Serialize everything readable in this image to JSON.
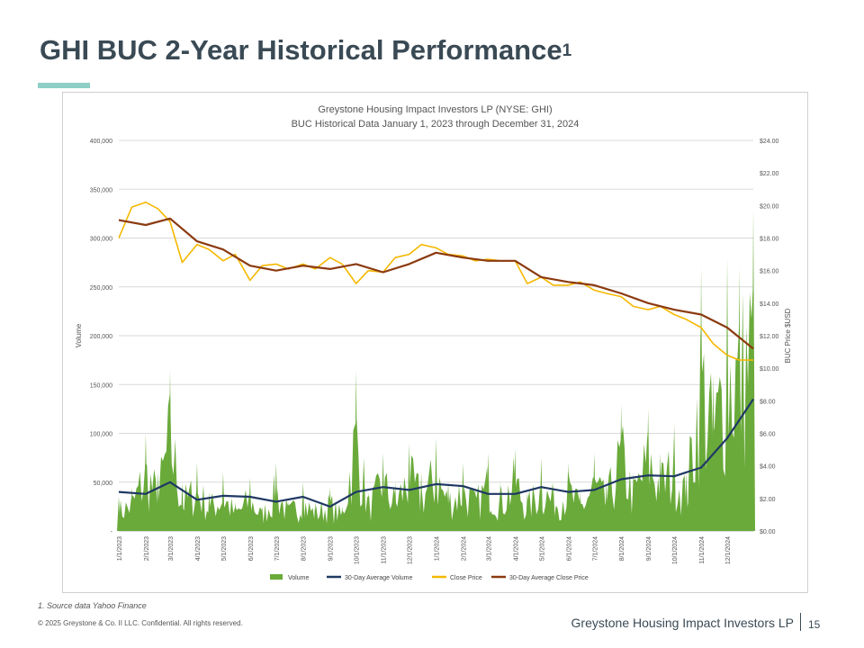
{
  "slide": {
    "title": "GHI BUC 2-Year Historical Performance",
    "title_sup": "1",
    "footnote": "1.  Source data Yahoo Finance",
    "copyright": "© 2025 Greystone & Co. II LLC. Confidential. All rights reserved.",
    "footer_brand": "Greystone Housing Impact Investors LP",
    "page_number": "15",
    "accent_color": "#8ecfc6"
  },
  "chart_data": {
    "type": "area",
    "title": "Greystone Housing Impact Investors LP (NYSE: GHI)",
    "subtitle": "BUC Historical Data January 1, 2023 through December  31, 2024",
    "ylabel": "Volume",
    "y2label": "BUC Price $USD",
    "ylim": [
      0,
      400000
    ],
    "y2lim": [
      0,
      24
    ],
    "y_ticks": [
      "-",
      "50,000",
      "100,000",
      "150,000",
      "200,000",
      "250,000",
      "300,000",
      "350,000",
      "400,000"
    ],
    "y2_ticks": [
      "$0.00",
      "$2.00",
      "$4.00",
      "$6.00",
      "$8.00",
      "$10.00",
      "$12.00",
      "$14.00",
      "$16.00",
      "$18.00",
      "$20.00",
      "$22.00",
      "$24.00"
    ],
    "x_ticks": [
      "1/1/2023",
      "2/1/2023",
      "3/1/2023",
      "4/1/2023",
      "5/1/2023",
      "6/1/2023",
      "7/1/2023",
      "8/1/2023",
      "9/1/2023",
      "10/1/2023",
      "11/1/2023",
      "12/1/2023",
      "1/1/2024",
      "2/1/2024",
      "3/1/2024",
      "4/1/2024",
      "5/1/2024",
      "6/1/2024",
      "7/1/2024",
      "8/1/2024",
      "9/1/2024",
      "10/1/2024",
      "11/1/2024",
      "12/1/2024"
    ],
    "grid": true,
    "legend_position": "bottom",
    "legend": [
      "Volume",
      "30-Day Average Volume",
      "Close Price",
      "30-Day Average Close Price"
    ],
    "colors": {
      "volume": "#6aaa3a",
      "avg_volume": "#1f3864",
      "close": "#f5b800",
      "avg_close": "#8b3a0f"
    },
    "series": [
      {
        "name": "Close Price",
        "axis": "right",
        "dates": [
          "1/1/2023",
          "1/16/2023",
          "2/1/2023",
          "2/15/2023",
          "3/1/2023",
          "3/15/2023",
          "4/1/2023",
          "4/15/2023",
          "5/1/2023",
          "5/15/2023",
          "6/1/2023",
          "6/15/2023",
          "7/1/2023",
          "7/15/2023",
          "8/1/2023",
          "8/15/2023",
          "9/1/2023",
          "9/15/2023",
          "10/1/2023",
          "10/15/2023",
          "11/1/2023",
          "11/15/2023",
          "12/1/2023",
          "12/15/2023",
          "1/1/2024",
          "1/15/2024",
          "2/1/2024",
          "2/15/2024",
          "3/1/2024",
          "3/15/2024",
          "4/1/2024",
          "4/15/2024",
          "5/1/2024",
          "5/15/2024",
          "6/1/2024",
          "6/15/2024",
          "7/1/2024",
          "7/15/2024",
          "8/1/2024",
          "8/15/2024",
          "9/1/2024",
          "9/15/2024",
          "10/1/2024",
          "10/15/2024",
          "11/1/2024",
          "11/15/2024",
          "12/1/2024",
          "12/15/2024",
          "12/31/2024"
        ],
        "values": [
          18.0,
          19.9,
          20.2,
          19.8,
          19.0,
          16.5,
          17.6,
          17.3,
          16.6,
          17.0,
          15.4,
          16.3,
          16.4,
          16.1,
          16.4,
          16.1,
          16.8,
          16.4,
          15.2,
          16.0,
          15.9,
          16.8,
          17.0,
          17.6,
          17.4,
          17.0,
          16.9,
          16.6,
          16.7,
          16.6,
          16.6,
          15.2,
          15.6,
          15.1,
          15.1,
          15.3,
          14.8,
          14.6,
          14.4,
          13.8,
          13.6,
          13.8,
          13.3,
          13.0,
          12.5,
          11.5,
          10.8,
          10.5,
          10.5
        ]
      },
      {
        "name": "30-Day Average Close Price",
        "axis": "right",
        "dates": [
          "1/1/2023",
          "2/1/2023",
          "3/1/2023",
          "4/1/2023",
          "5/1/2023",
          "6/1/2023",
          "7/1/2023",
          "8/1/2023",
          "9/1/2023",
          "10/1/2023",
          "11/1/2023",
          "12/1/2023",
          "1/1/2024",
          "2/1/2024",
          "3/1/2024",
          "4/1/2024",
          "5/1/2024",
          "6/1/2024",
          "7/1/2024",
          "8/1/2024",
          "9/1/2024",
          "10/1/2024",
          "11/1/2024",
          "12/1/2024",
          "12/31/2024"
        ],
        "values": [
          19.1,
          18.8,
          19.2,
          17.8,
          17.3,
          16.3,
          16.0,
          16.3,
          16.1,
          16.4,
          15.9,
          16.4,
          17.1,
          16.8,
          16.6,
          16.6,
          15.6,
          15.3,
          15.1,
          14.6,
          14.0,
          13.6,
          13.3,
          12.5,
          11.2
        ]
      },
      {
        "name": "Volume",
        "axis": "left",
        "dates": [
          "1/1/2023",
          "1/16/2023",
          "2/1/2023",
          "2/15/2023",
          "3/1/2023",
          "3/15/2023",
          "4/1/2023",
          "4/15/2023",
          "5/1/2023",
          "5/15/2023",
          "6/1/2023",
          "6/15/2023",
          "7/1/2023",
          "7/15/2023",
          "8/1/2023",
          "8/15/2023",
          "9/1/2023",
          "9/15/2023",
          "10/1/2023",
          "10/15/2023",
          "11/1/2023",
          "11/15/2023",
          "12/1/2023",
          "12/15/2023",
          "1/1/2024",
          "1/15/2024",
          "2/1/2024",
          "2/15/2024",
          "3/1/2024",
          "3/15/2024",
          "4/1/2024",
          "4/15/2024",
          "5/1/2024",
          "5/15/2024",
          "6/1/2024",
          "6/15/2024",
          "7/1/2024",
          "7/15/2024",
          "8/1/2024",
          "8/15/2024",
          "9/1/2024",
          "9/15/2024",
          "10/1/2024",
          "10/15/2024",
          "11/1/2024",
          "11/15/2024",
          "12/1/2024",
          "12/15/2024",
          "12/31/2024"
        ],
        "values": [
          35000,
          45000,
          100000,
          60000,
          165000,
          50000,
          70000,
          40000,
          60000,
          30000,
          55000,
          25000,
          70000,
          30000,
          50000,
          30000,
          45000,
          25000,
          165000,
          40000,
          80000,
          50000,
          90000,
          60000,
          95000,
          50000,
          70000,
          45000,
          80000,
          50000,
          85000,
          40000,
          75000,
          50000,
          70000,
          40000,
          80000,
          50000,
          130000,
          60000,
          125000,
          80000,
          110000,
          60000,
          270000,
          160000,
          280000,
          270000,
          330000
        ]
      },
      {
        "name": "30-Day Average Volume",
        "axis": "left",
        "dates": [
          "1/1/2023",
          "2/1/2023",
          "3/1/2023",
          "4/1/2023",
          "5/1/2023",
          "6/1/2023",
          "7/1/2023",
          "8/1/2023",
          "9/1/2023",
          "10/1/2023",
          "11/1/2023",
          "12/1/2023",
          "1/1/2024",
          "2/1/2024",
          "3/1/2024",
          "4/1/2024",
          "5/1/2024",
          "6/1/2024",
          "7/1/2024",
          "8/1/2024",
          "9/1/2024",
          "10/1/2024",
          "11/1/2024",
          "12/1/2024",
          "12/31/2024"
        ],
        "values": [
          40000,
          38000,
          50000,
          32000,
          36000,
          35000,
          30000,
          35000,
          25000,
          40000,
          45000,
          42000,
          48000,
          46000,
          38000,
          38000,
          45000,
          40000,
          42000,
          53000,
          57000,
          56000,
          65000,
          95000,
          135000
        ]
      }
    ]
  }
}
